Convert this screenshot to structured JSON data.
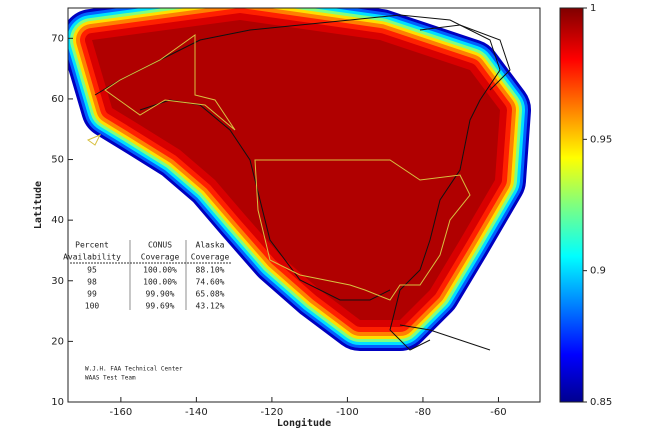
{
  "map": {
    "xlabel": "Longitude",
    "ylabel": "Latitude",
    "xlim": [
      -174,
      -49
    ],
    "ylim": [
      10,
      75
    ],
    "xticks": [
      -160,
      -140,
      -120,
      -100,
      -80,
      -60
    ],
    "yticks": [
      10,
      20,
      30,
      40,
      50,
      60,
      70
    ]
  },
  "colorbar": {
    "lim": [
      0.85,
      1
    ],
    "ticks": [
      0.85,
      0.9,
      0.95,
      1
    ]
  },
  "table": {
    "header": [
      [
        "Percent",
        "CONUS",
        "Alaska"
      ],
      [
        "Availability",
        "Coverage",
        "Coverage"
      ]
    ],
    "rows": [
      [
        "95",
        "100.00%",
        "88.10%"
      ],
      [
        "98",
        "100.00%",
        "74.60%"
      ],
      [
        "99",
        "99.90%",
        "65.08%"
      ],
      [
        "100",
        "99.69%",
        "43.12%"
      ]
    ]
  },
  "credit": [
    "W.J.H. FAA Technical Center",
    "WAAS Test Team"
  ]
}
